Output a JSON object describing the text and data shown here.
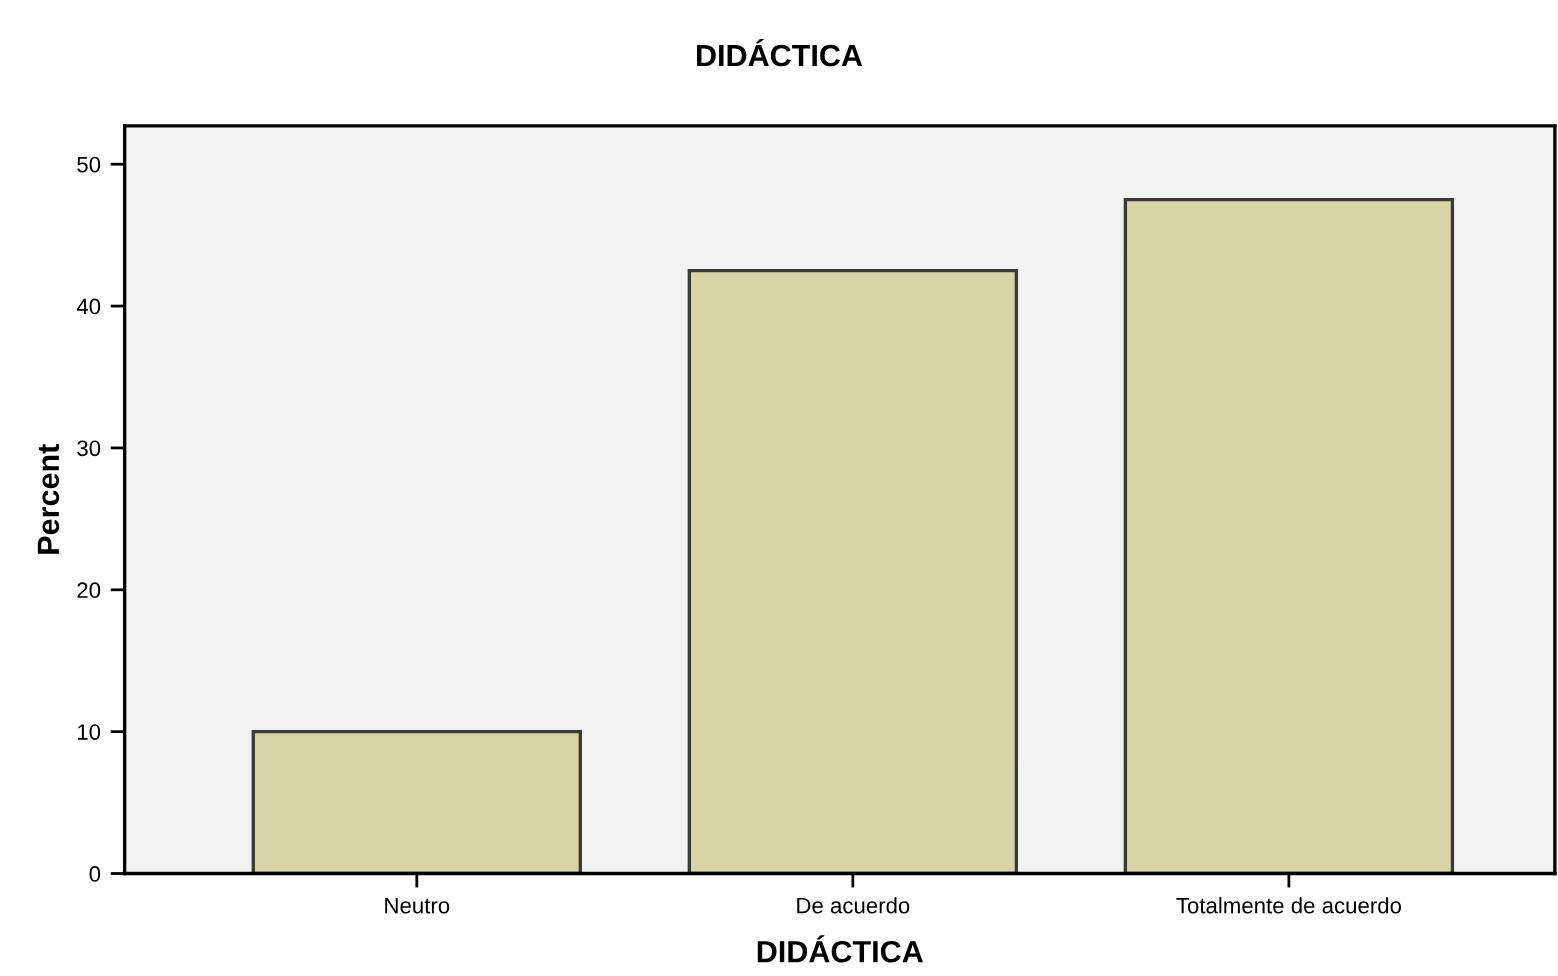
{
  "chart_data": {
    "type": "bar",
    "title": "DIDÁCTICA",
    "xlabel": "DIDÁCTICA",
    "ylabel": "Percent",
    "categories": [
      "Neutro",
      "De acuerdo",
      "Totalmente de acuerdo"
    ],
    "values": [
      10,
      42.5,
      47.5
    ],
    "color": "#d9d4a6",
    "ylim": [
      0,
      52.7
    ],
    "yticks": [
      0,
      10,
      20,
      30,
      40,
      50
    ],
    "grid": false,
    "legend": false
  }
}
